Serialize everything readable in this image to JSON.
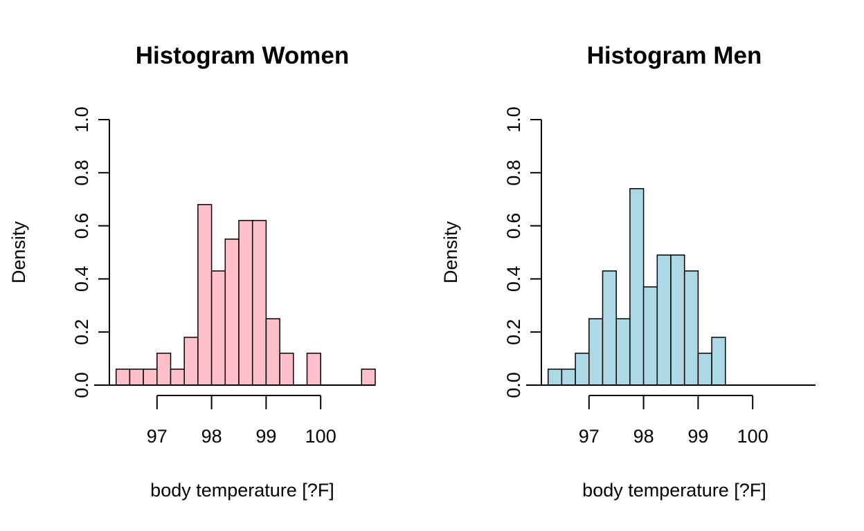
{
  "chart_data": [
    {
      "type": "bar",
      "title": "Histogram Women",
      "xlabel": "body temperature [?F]",
      "ylabel": "Density",
      "xlim": [
        96.0,
        101.0
      ],
      "ylim": [
        0,
        1.0
      ],
      "x_ticks": [
        "97",
        "98",
        "99",
        "100"
      ],
      "y_ticks": [
        "0.0",
        "0.2",
        "0.4",
        "0.6",
        "0.8",
        "1.0"
      ],
      "grid": false,
      "bin_width": 0.25,
      "bins": [
        96.25,
        96.5,
        96.75,
        97.0,
        97.25,
        97.5,
        97.75,
        98.0,
        98.25,
        98.5,
        98.75,
        99.0,
        99.25,
        99.5,
        99.75,
        100.0,
        100.25,
        100.5,
        100.75
      ],
      "values": [
        0.06,
        0.06,
        0.06,
        0.12,
        0.06,
        0.18,
        0.68,
        0.43,
        0.55,
        0.62,
        0.62,
        0.25,
        0.12,
        0.0,
        0.12,
        0.0,
        0.0,
        0.0,
        0.06
      ],
      "fill": "#ffc0cb"
    },
    {
      "type": "bar",
      "title": "Histogram Men",
      "xlabel": "body temperature [?F]",
      "ylabel": "Density",
      "xlim": [
        96.0,
        101.0
      ],
      "ylim": [
        0,
        1.0
      ],
      "x_ticks": [
        "97",
        "98",
        "99",
        "100"
      ],
      "y_ticks": [
        "0.0",
        "0.2",
        "0.4",
        "0.6",
        "0.8",
        "1.0"
      ],
      "grid": false,
      "bin_width": 0.25,
      "bins": [
        96.25,
        96.5,
        96.75,
        97.0,
        97.25,
        97.5,
        97.75,
        98.0,
        98.25,
        98.5,
        98.75,
        99.0,
        99.25,
        99.5,
        99.75,
        100.0,
        100.25,
        100.5,
        100.75
      ],
      "values": [
        0.06,
        0.06,
        0.12,
        0.25,
        0.43,
        0.25,
        0.74,
        0.37,
        0.49,
        0.49,
        0.43,
        0.12,
        0.18,
        0.0,
        0.0,
        0.0,
        0.0,
        0.0,
        0.0
      ],
      "fill": "#add8e6"
    }
  ]
}
